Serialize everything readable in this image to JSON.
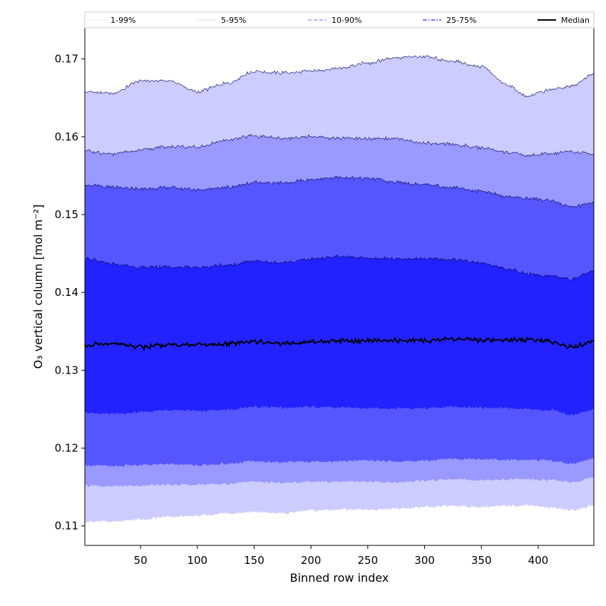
{
  "chart_data": {
    "type": "area",
    "xlabel": "Binned row index",
    "ylabel": "O₃ vertical column [mol m⁻²]",
    "xlim": [
      1,
      449
    ],
    "ylim": [
      0.1075,
      0.174
    ],
    "xticks": [
      50,
      100,
      150,
      200,
      250,
      300,
      350,
      400
    ],
    "yticks": [
      0.11,
      0.12,
      0.13,
      0.14,
      0.15,
      0.16,
      0.17
    ],
    "ytick_labels": [
      "0.11",
      "0.12",
      "0.13",
      "0.14",
      "0.15",
      "0.16",
      "0.17"
    ],
    "control_x": [
      1,
      25,
      50,
      75,
      100,
      125,
      150,
      175,
      200,
      225,
      250,
      275,
      300,
      325,
      350,
      375,
      390,
      410,
      430,
      449
    ],
    "bands": [
      {
        "name": "1-99%",
        "color": "#ccccff",
        "legend_color": "#e6e6ff",
        "legend_dash": "solid",
        "upper": [
          0.1658,
          0.1656,
          0.1672,
          0.1672,
          0.1658,
          0.1668,
          0.1684,
          0.1682,
          0.1684,
          0.1688,
          0.1695,
          0.1702,
          0.1703,
          0.1697,
          0.169,
          0.1665,
          0.1652,
          0.166,
          0.1665,
          0.168
        ],
        "lower": [
          0.1105,
          0.1106,
          0.1108,
          0.1112,
          0.1113,
          0.1116,
          0.1118,
          0.1116,
          0.112,
          0.1121,
          0.1121,
          0.1122,
          0.1124,
          0.1126,
          0.1124,
          0.1126,
          0.1127,
          0.1124,
          0.112,
          0.1126
        ]
      },
      {
        "name": "5-95%",
        "color": "#9999ff",
        "legend_color": "#b3b3ff",
        "legend_dash": "dotted",
        "upper": [
          0.1582,
          0.1578,
          0.1583,
          0.1587,
          0.1587,
          0.1595,
          0.1601,
          0.1598,
          0.16,
          0.1598,
          0.1598,
          0.1598,
          0.1592,
          0.159,
          0.1586,
          0.158,
          0.1576,
          0.1578,
          0.1581,
          0.1578
        ],
        "lower": [
          0.1152,
          0.1151,
          0.1152,
          0.1153,
          0.1153,
          0.1154,
          0.1157,
          0.1155,
          0.1157,
          0.1157,
          0.1157,
          0.1156,
          0.1158,
          0.116,
          0.1159,
          0.116,
          0.116,
          0.1159,
          0.1156,
          0.1162
        ]
      },
      {
        "name": "10-90%",
        "color": "#5656ff",
        "legend_color": "#8080ff",
        "legend_dash": "dashed",
        "upper": [
          0.1538,
          0.1535,
          0.1533,
          0.1535,
          0.1532,
          0.1535,
          0.1541,
          0.1541,
          0.1545,
          0.1548,
          0.1546,
          0.1542,
          0.1538,
          0.1535,
          0.153,
          0.1523,
          0.1521,
          0.1518,
          0.151,
          0.1515
        ],
        "lower": [
          0.1178,
          0.1177,
          0.1178,
          0.118,
          0.1178,
          0.118,
          0.1183,
          0.1182,
          0.1183,
          0.1183,
          0.1184,
          0.1183,
          0.1184,
          0.1186,
          0.1186,
          0.1185,
          0.1185,
          0.1184,
          0.118,
          0.1187
        ]
      },
      {
        "name": "25-75%",
        "color": "#2222ff",
        "legend_color": "#4d4dff",
        "legend_dash": "dashdot",
        "upper": [
          0.1443,
          0.1437,
          0.1432,
          0.1433,
          0.1432,
          0.1435,
          0.144,
          0.1438,
          0.1443,
          0.1446,
          0.1444,
          0.1443,
          0.1443,
          0.1442,
          0.1438,
          0.143,
          0.1424,
          0.1421,
          0.1417,
          0.1428
        ],
        "lower": [
          0.1245,
          0.1244,
          0.1246,
          0.1249,
          0.1248,
          0.1249,
          0.1253,
          0.1252,
          0.1253,
          0.1252,
          0.1251,
          0.1251,
          0.1251,
          0.1253,
          0.1252,
          0.1251,
          0.125,
          0.1249,
          0.1243,
          0.125
        ]
      }
    ],
    "median": {
      "name": "Median",
      "color": "#000000",
      "values": [
        0.1333,
        0.1334,
        0.133,
        0.1333,
        0.1333,
        0.1334,
        0.1337,
        0.1334,
        0.1337,
        0.1338,
        0.1338,
        0.1338,
        0.1338,
        0.134,
        0.1339,
        0.1339,
        0.1339,
        0.1337,
        0.133,
        0.1337
      ]
    },
    "legend_location": "top, above plot area"
  }
}
